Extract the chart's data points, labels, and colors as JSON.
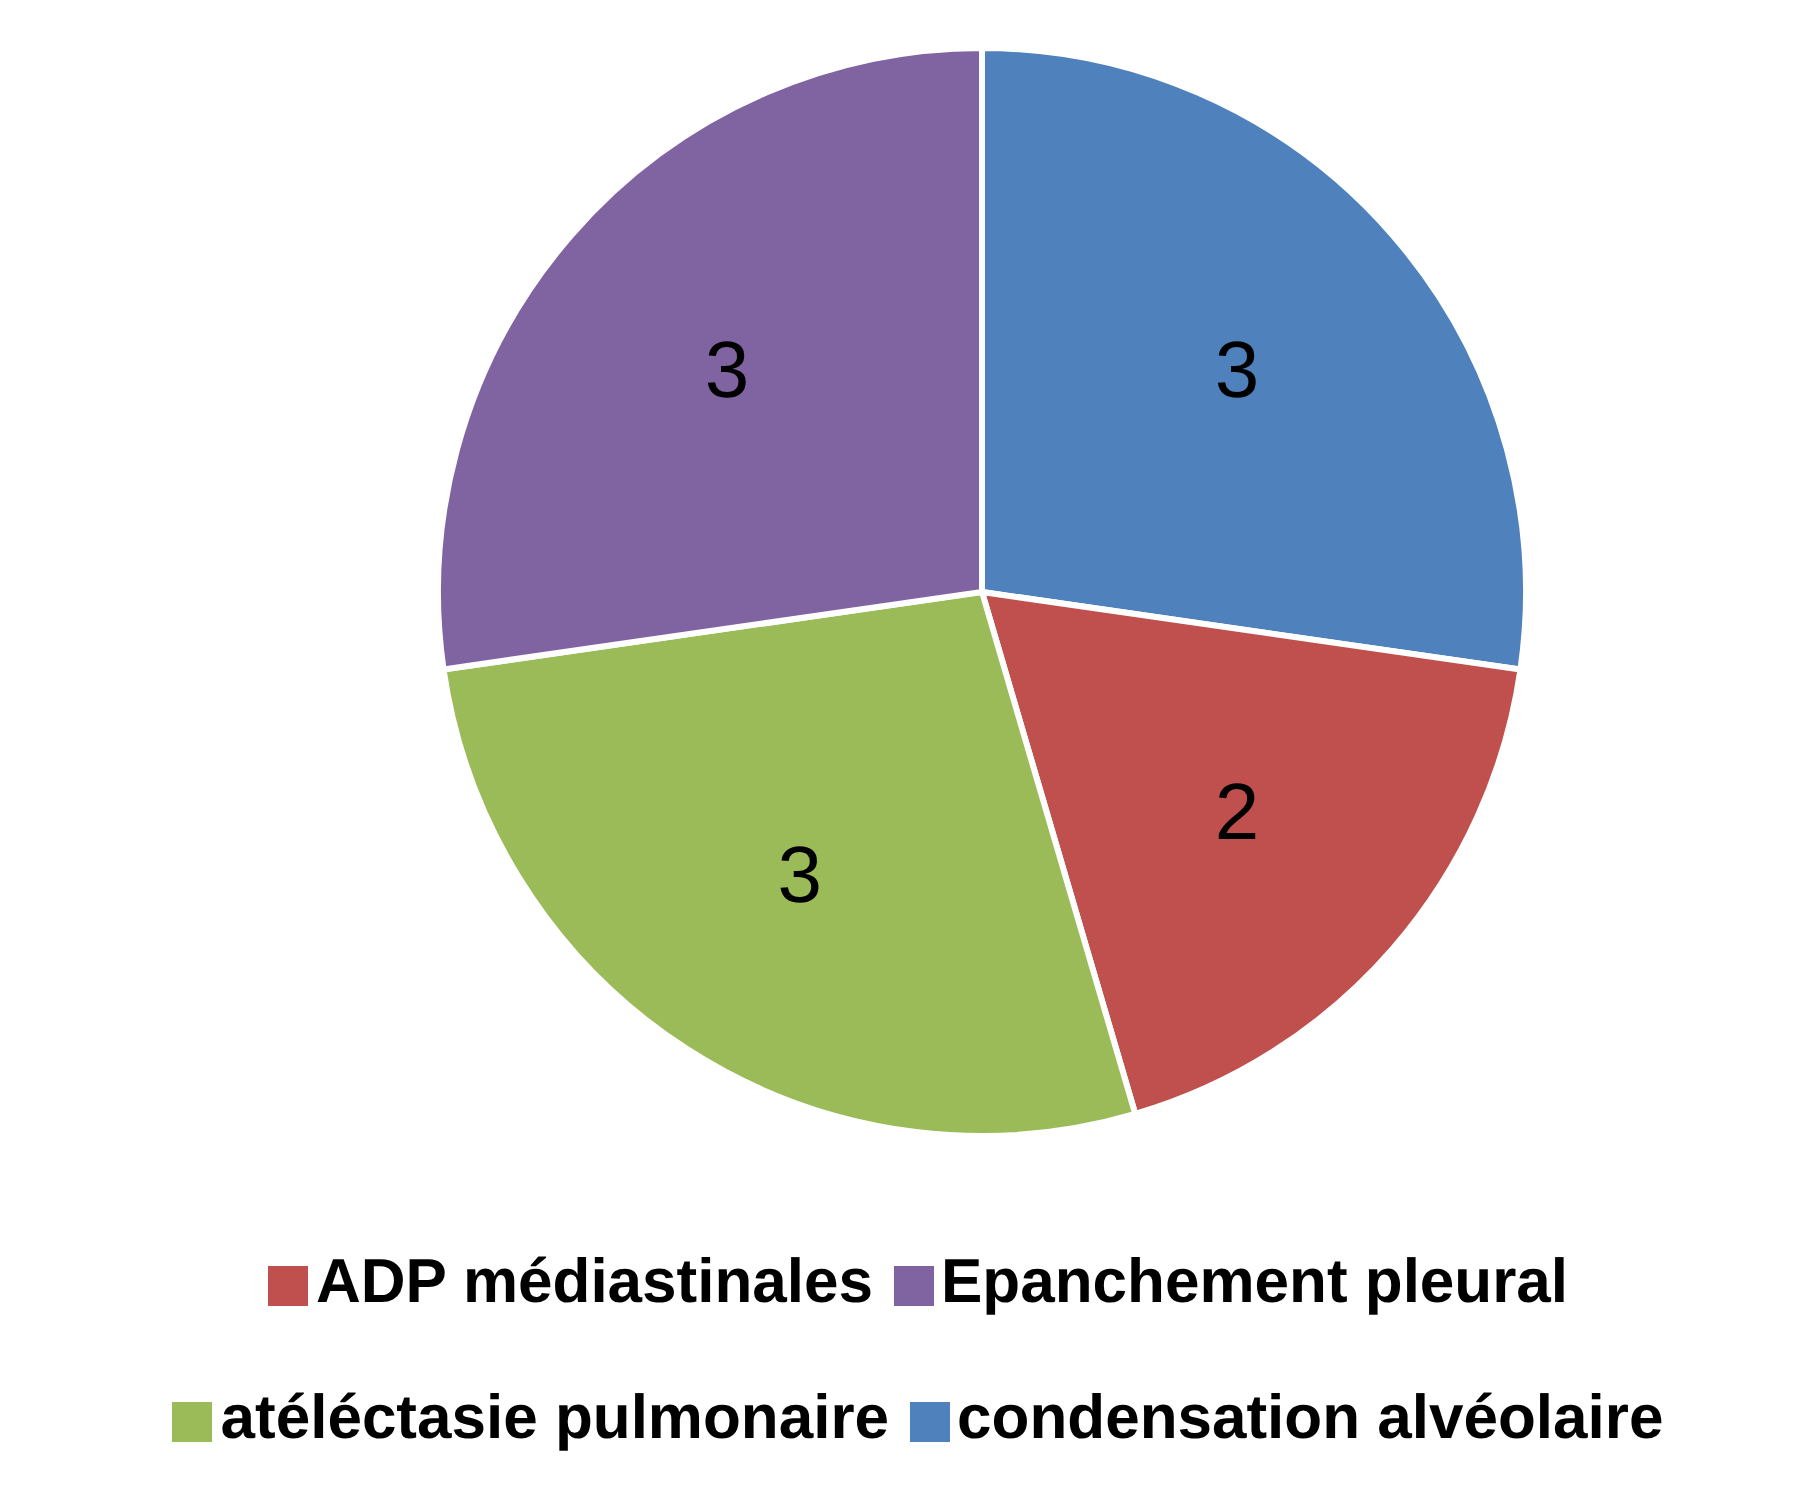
{
  "chart_data": {
    "type": "pie",
    "categories": [
      "condensation alvéolaire",
      "ADP médiastinales",
      "atéléctasie pulmonaire",
      "Epanchement pleural"
    ],
    "values": [
      3,
      2,
      3,
      3
    ],
    "colors": [
      "#4f81bd",
      "#c0504d",
      "#9bbb59",
      "#8064a2"
    ],
    "data_labels": true,
    "legend": "bottom"
  }
}
